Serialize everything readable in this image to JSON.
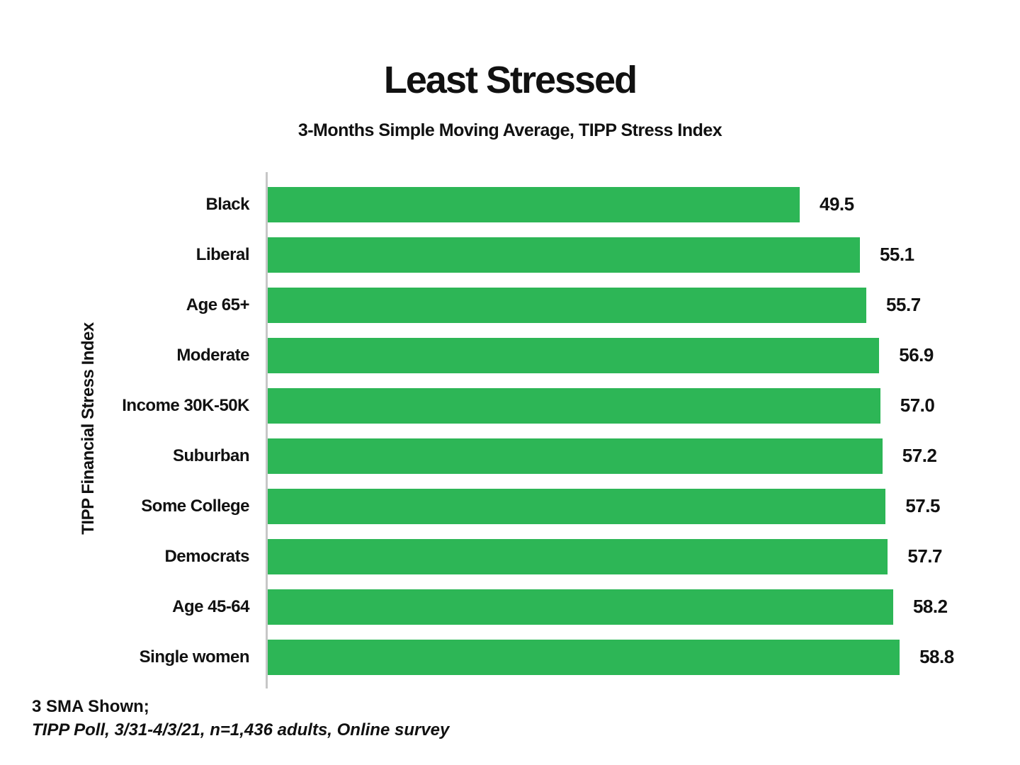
{
  "title": "Least Stressed",
  "subtitle": "3-Months Simple Moving Average, TIPP Stress Index",
  "ylabel": "TIPP Financial Stress Index",
  "footer": {
    "line1": "3 SMA Shown;",
    "line2": "TIPP Poll, 3/31-4/3/21, n=1,436 adults, Online survey"
  },
  "colors": {
    "bar": "#2db656",
    "axis": "#c7c7c7",
    "text": "#111111"
  },
  "chart_data": {
    "type": "bar",
    "orientation": "horizontal",
    "title": "Least Stressed",
    "subtitle": "3-Months Simple Moving Average, TIPP Stress Index",
    "xlabel": "",
    "ylabel": "TIPP Financial Stress Index",
    "categories": [
      "Black",
      "Liberal",
      "Age 65+",
      "Moderate",
      "Income 30K-50K",
      "Suburban",
      "Some College",
      "Democrats",
      "Age 45-64",
      "Single women"
    ],
    "values": [
      49.5,
      55.1,
      55.7,
      56.9,
      57.0,
      57.2,
      57.5,
      57.7,
      58.2,
      58.8
    ],
    "value_labels": [
      "49.5",
      "55.1",
      "55.7",
      "56.9",
      "57.0",
      "57.2",
      "57.5",
      "57.7",
      "58.2",
      "58.8"
    ],
    "xlim": [
      0,
      70
    ],
    "grid": false,
    "legend": false,
    "data_labels": "outside-end"
  }
}
